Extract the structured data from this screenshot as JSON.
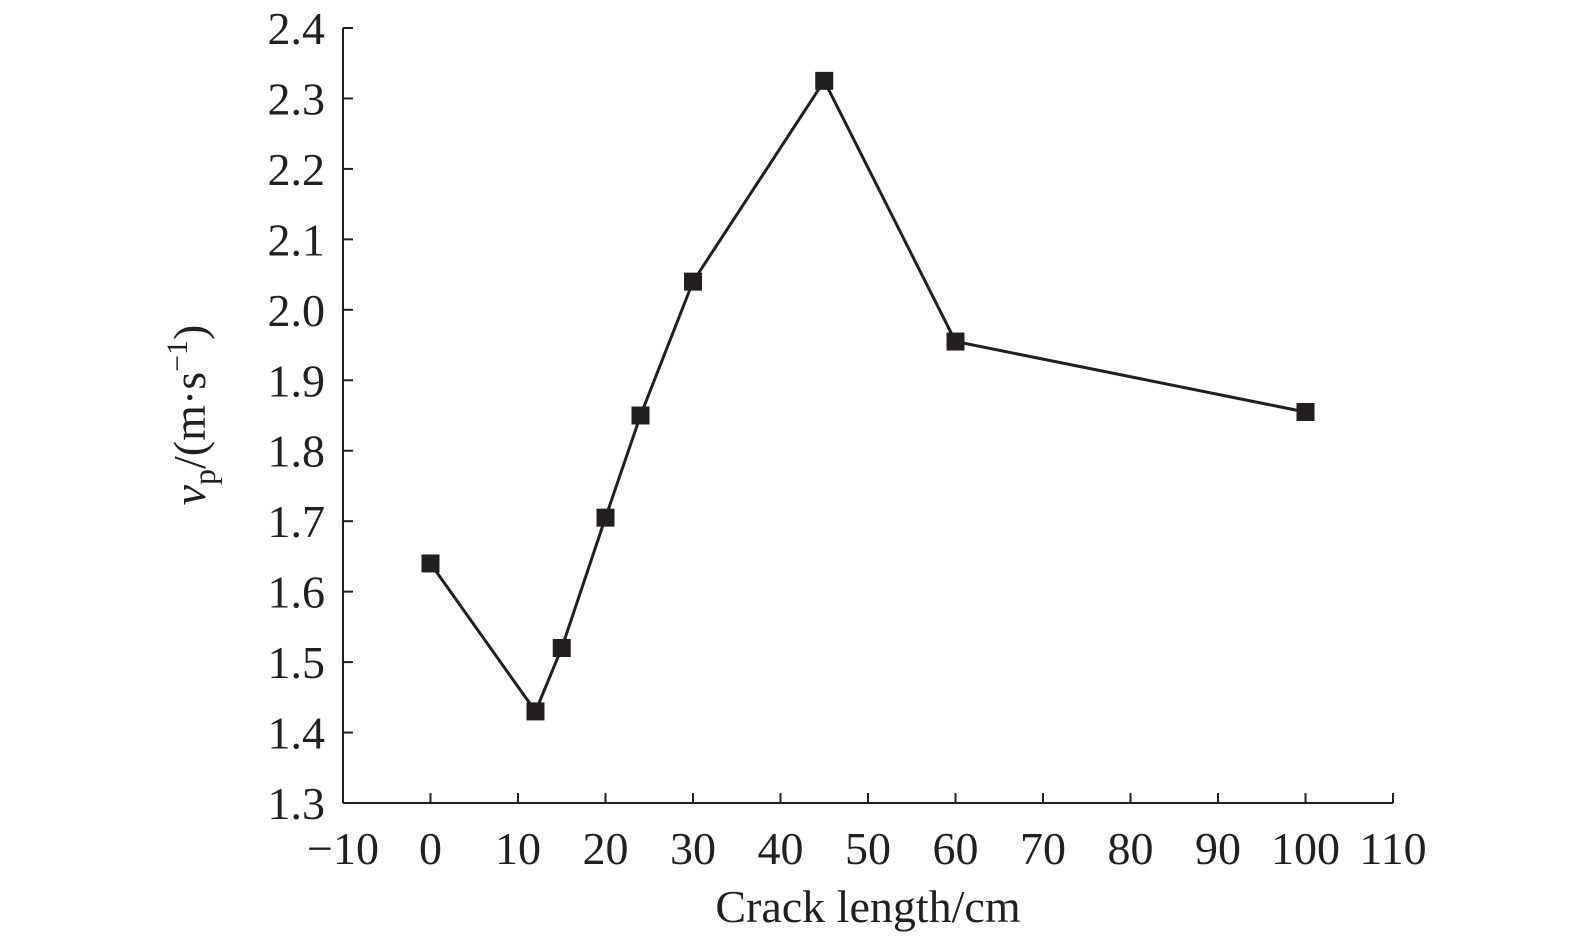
{
  "chart_data": {
    "type": "line",
    "x_label": "Crack length/cm",
    "y_label": [
      "v",
      "p",
      "/(m·s",
      "−1",
      ")"
    ],
    "x": [
      0,
      12,
      15,
      20,
      24,
      30,
      45,
      60,
      100
    ],
    "series": [
      {
        "color": "#231f20",
        "values": [
          1.64,
          1.43,
          1.52,
          1.705,
          1.85,
          2.04,
          2.325,
          1.955,
          1.855
        ]
      }
    ],
    "xlim": [
      -10,
      110
    ],
    "xticks": [
      {
        "value": -10,
        "label": "−10"
      },
      0,
      10,
      20,
      30,
      40,
      50,
      60,
      70,
      80,
      90,
      100,
      110
    ],
    "ylim": [
      1.3,
      2.4
    ],
    "yticks": [
      1.3,
      1.4,
      1.5,
      1.6,
      1.7,
      1.8,
      1.9,
      {
        "value": 2,
        "label": "2.0"
      },
      2.1,
      2.2,
      2.3,
      2.4
    ],
    "grid": false
  }
}
